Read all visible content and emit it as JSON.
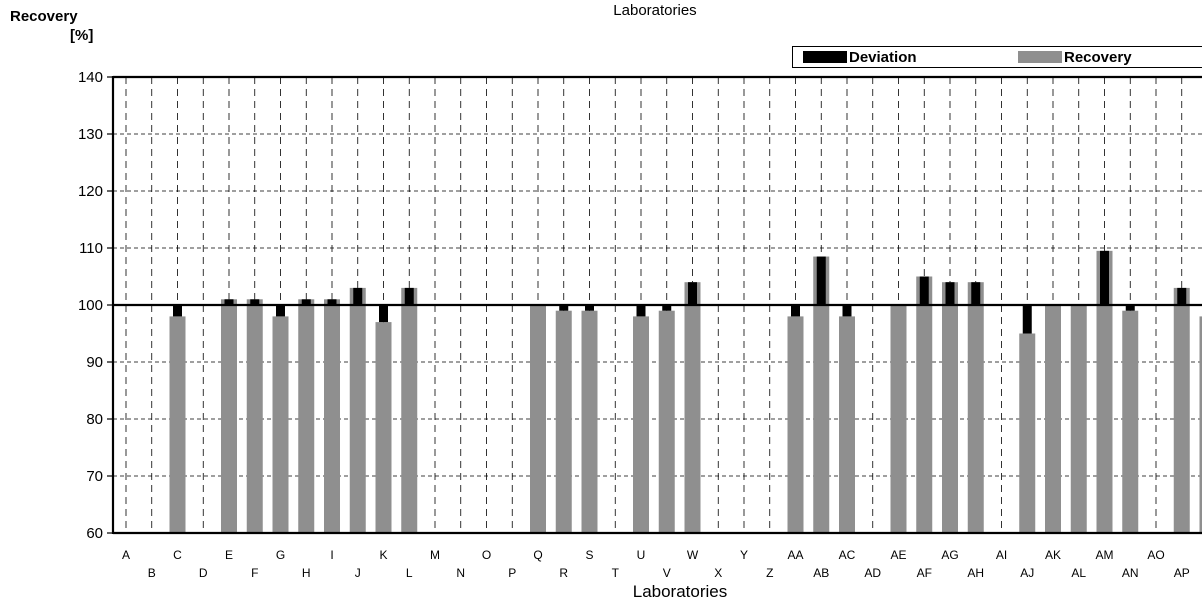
{
  "header": {
    "title": "Laboratories"
  },
  "colors": {
    "recovery": "#8f8f8f",
    "deviation": "#000000",
    "grid": "#000000",
    "background": "#ffffff"
  },
  "chart_data": {
    "type": "bar",
    "title": "Laboratories",
    "xlabel": "Laboratories",
    "ylabel": "Recovery",
    "ylabel_unit": "[%]",
    "ylim": [
      60,
      140
    ],
    "yticks": [
      60,
      70,
      80,
      90,
      100,
      110,
      120,
      130,
      140
    ],
    "reference_line": 100,
    "grid": true,
    "legend_position": "top-right",
    "categories": [
      "A",
      "B",
      "C",
      "D",
      "E",
      "F",
      "G",
      "H",
      "I",
      "J",
      "K",
      "L",
      "M",
      "N",
      "O",
      "P",
      "Q",
      "R",
      "S",
      "T",
      "U",
      "V",
      "W",
      "X",
      "Y",
      "Z",
      "AA",
      "AB",
      "AC",
      "AD",
      "AE",
      "AF",
      "AG",
      "AH",
      "AI",
      "AJ",
      "AK",
      "AL",
      "AM",
      "AN",
      "AO",
      "AP"
    ],
    "series": [
      {
        "name": "Recovery",
        "values": [
          null,
          98,
          null,
          101,
          101,
          98,
          101,
          101,
          103,
          97,
          103,
          null,
          null,
          null,
          null,
          100,
          99,
          99,
          null,
          98,
          99,
          104,
          null,
          null,
          null,
          98,
          108.5,
          98,
          null,
          100,
          105,
          104,
          104,
          null,
          95,
          100,
          100,
          109.5,
          99,
          null,
          103,
          98
        ]
      },
      {
        "name": "Deviation",
        "values": [
          null,
          -2,
          null,
          1,
          1,
          -2,
          1,
          1,
          3,
          -3,
          3,
          null,
          null,
          null,
          null,
          0,
          -1,
          -1,
          null,
          -2,
          -1,
          4,
          null,
          null,
          null,
          -2,
          8.5,
          -2,
          null,
          0,
          5,
          4,
          4,
          null,
          -5,
          0,
          0,
          9.5,
          -1,
          null,
          3,
          -2
        ]
      }
    ]
  }
}
